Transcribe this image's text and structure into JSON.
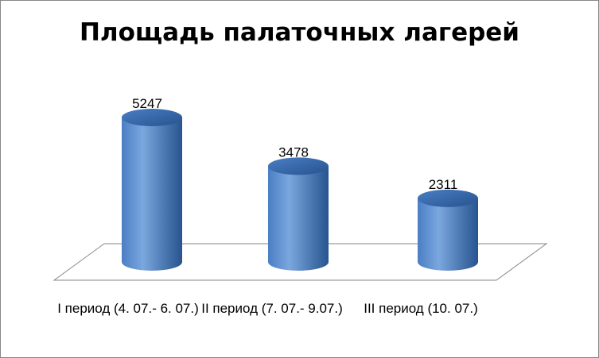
{
  "chart_data": {
    "type": "bar",
    "style": "3d-cylinder",
    "title": "Площадь палаточных лагерей",
    "categories": [
      "I период (4. 07.- 6. 07.)",
      "II период (7. 07.- 9.07.)",
      "III период (10. 07.)"
    ],
    "values": [
      5247,
      3478,
      2311
    ],
    "data_labels": [
      "5247",
      "3478",
      "2311"
    ],
    "xlabel": "",
    "ylabel": "",
    "ylim": [
      0,
      6000
    ],
    "grid": false,
    "legend": "none",
    "colors": {
      "bar_light": "#7ba7de",
      "bar_mid": "#4a7ec4",
      "bar_dark": "#27538f",
      "floor_stroke": "#868686"
    }
  }
}
